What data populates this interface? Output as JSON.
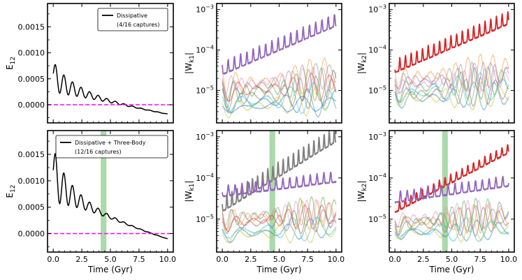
{
  "chart_data": [
    {
      "type": "line",
      "panel": "top-left",
      "ylabel": "E",
      "ylabel_sub": "12",
      "xlabel": "",
      "xlim": [
        -0.5,
        10.5
      ],
      "ylim": [
        -0.00035,
        0.00195
      ],
      "yscale": "linear",
      "yticks": [
        0.0,
        0.0005,
        0.001,
        0.0015
      ],
      "ytick_labels": [
        "0.0000",
        "0.0005",
        "0.0010",
        "0.0015"
      ],
      "xticks": [
        0.0,
        2.5,
        5.0,
        7.5,
        10.0
      ],
      "xtick_labels": [
        "0.0",
        "2.5",
        "5.0",
        "7.5",
        "10.0"
      ],
      "show_xtick_labels": false,
      "legend": {
        "line1": "Dissipative",
        "line2": "(4/16 captures)",
        "placement": "upper-right"
      },
      "reference_line": {
        "y": 0.0,
        "color": "#ff00ff",
        "style": "dashed"
      },
      "series": [
        {
          "name": "Dissipative",
          "color": "#000000",
          "trend_start": 0.0006,
          "trend_end": -0.00018,
          "amp_start": 0.00028,
          "amp_decay": 0.45,
          "period": 0.75,
          "t_start": 0.0,
          "t_end": 10.0
        }
      ]
    },
    {
      "type": "line",
      "panel": "bottom-left",
      "ylabel": "E",
      "ylabel_sub": "12",
      "xlabel": "Time (Gyr)",
      "xlim": [
        -0.5,
        10.5
      ],
      "ylim": [
        -0.00035,
        0.00195
      ],
      "yscale": "linear",
      "yticks": [
        0.0,
        0.0005,
        0.001,
        0.0015
      ],
      "ytick_labels": [
        "0.0000",
        "0.0005",
        "0.0010",
        "0.0015"
      ],
      "xticks": [
        0.0,
        2.5,
        5.0,
        7.5,
        10.0
      ],
      "xtick_labels": [
        "0.0",
        "2.5",
        "5.0",
        "7.5",
        "10.0"
      ],
      "show_xtick_labels": true,
      "legend": {
        "line1": "Dissipative + Three-Body",
        "line2": "(12/16 captures)",
        "placement": "upper-right"
      },
      "reference_line": {
        "y": 0.0,
        "color": "#ff00ff",
        "style": "dashed"
      },
      "shaded_band": {
        "x": [
          4.15,
          4.65
        ],
        "color": "#2ca02c"
      },
      "series": [
        {
          "name": "Dissipative + Three-Body",
          "color": "#000000",
          "trend_start": 0.0012,
          "trend_end": -0.0001,
          "amp_start": 0.0005,
          "amp_decay": 0.55,
          "period": 0.75,
          "t_start": 0.0,
          "t_end": 10.0
        }
      ]
    },
    {
      "type": "line",
      "panel": "top-middle",
      "ylabel": "|W",
      "ylabel_sub": "k1",
      "ylabel_end": "|",
      "xlabel": "",
      "xlim": [
        -0.5,
        10.5
      ],
      "ylim_log10": [
        -5.8,
        -2.85
      ],
      "yscale": "log",
      "ytick_exponents": [
        -5,
        -4,
        -3
      ],
      "ytick_base": "10",
      "xticks": [
        0.0,
        2.5,
        5.0,
        7.5,
        10.0
      ],
      "xtick_labels": [
        "0.0",
        "2.5",
        "5.0",
        "7.5",
        "10.0"
      ],
      "show_xtick_labels": false,
      "series": [
        {
          "name": "highlight",
          "color": "#9467bd",
          "log_start": -4.55,
          "log_end": -3.35,
          "amp": 0.22,
          "period": 0.55,
          "width": 1.8,
          "alpha": 1.0
        },
        {
          "name": "bg1",
          "color": "#1f77b4",
          "log_start": -5.25,
          "log_end": -5.3,
          "amp": 0.35,
          "period": 1.9,
          "width": 1.2,
          "alpha": 0.45
        },
        {
          "name": "bg2",
          "color": "#ff7f0e",
          "log_start": -4.9,
          "log_end": -4.6,
          "amp": 0.45,
          "period": 1.3,
          "width": 1.2,
          "alpha": 0.45
        },
        {
          "name": "bg3",
          "color": "#2ca02c",
          "log_start": -5.1,
          "log_end": -4.8,
          "amp": 0.4,
          "period": 1.1,
          "width": 1.2,
          "alpha": 0.45
        },
        {
          "name": "bg4",
          "color": "#d62728",
          "log_start": -5.0,
          "log_end": -4.9,
          "amp": 0.35,
          "period": 1.6,
          "width": 1.2,
          "alpha": 0.45
        },
        {
          "name": "bg5",
          "color": "#8c564b",
          "log_start": -5.2,
          "log_end": -5.0,
          "amp": 0.4,
          "period": 1.4,
          "width": 1.2,
          "alpha": 0.45
        },
        {
          "name": "bg6",
          "color": "#e377c2",
          "log_start": -4.85,
          "log_end": -4.7,
          "amp": 0.3,
          "period": 0.9,
          "width": 1.2,
          "alpha": 0.45
        },
        {
          "name": "bg7",
          "color": "#7f7f7f",
          "log_start": -5.0,
          "log_end": -4.6,
          "amp": 0.35,
          "period": 1.2,
          "width": 1.2,
          "alpha": 0.45
        },
        {
          "name": "bg8",
          "color": "#bcbd22",
          "log_start": -5.45,
          "log_end": -5.2,
          "amp": 0.35,
          "period": 1.7,
          "width": 1.2,
          "alpha": 0.45
        },
        {
          "name": "bg9",
          "color": "#17becf",
          "log_start": -5.3,
          "log_end": -5.15,
          "amp": 0.38,
          "period": 2.1,
          "width": 1.2,
          "alpha": 0.45
        },
        {
          "name": "bg10",
          "color": "#1f77b4",
          "log_start": -5.45,
          "log_end": -5.3,
          "amp": 0.2,
          "period": 2.5,
          "width": 1.2,
          "alpha": 0.45
        }
      ]
    },
    {
      "type": "line",
      "panel": "bottom-middle",
      "ylabel": "|W",
      "ylabel_sub": "k1",
      "ylabel_end": "|",
      "xlabel": "Time (Gyr)",
      "xlim": [
        -0.5,
        10.5
      ],
      "ylim_log10": [
        -5.8,
        -2.85
      ],
      "yscale": "log",
      "ytick_exponents": [
        -5,
        -4,
        -3
      ],
      "ytick_base": "10",
      "xticks": [
        0.0,
        2.5,
        5.0,
        7.5,
        10.0
      ],
      "xtick_labels": [
        "0.0",
        "2.5",
        "5.0",
        "7.5",
        "10.0"
      ],
      "show_xtick_labels": true,
      "shaded_band": {
        "x": [
          4.15,
          4.65
        ],
        "color": "#2ca02c"
      },
      "series": [
        {
          "name": "highlight-gray",
          "color": "#7f7f7f",
          "log_start": -4.75,
          "log_end": -3.05,
          "amp": 0.25,
          "period": 0.45,
          "width": 1.8,
          "alpha": 1.0
        },
        {
          "name": "highlight-purple",
          "color": "#9467bd",
          "log_start": -4.4,
          "log_end": -4.05,
          "amp": 0.18,
          "period": 0.6,
          "width": 1.8,
          "alpha": 1.0
        },
        {
          "name": "bg1",
          "color": "#1f77b4",
          "log_start": -5.4,
          "log_end": -5.2,
          "amp": 0.25,
          "period": 2.0,
          "width": 1.2,
          "alpha": 0.45
        },
        {
          "name": "bg2",
          "color": "#ff7f0e",
          "log_start": -5.0,
          "log_end": -4.85,
          "amp": 0.35,
          "period": 1.2,
          "width": 1.2,
          "alpha": 0.45
        },
        {
          "name": "bg3",
          "color": "#2ca02c",
          "log_start": -5.0,
          "log_end": -4.75,
          "amp": 0.35,
          "period": 1.0,
          "width": 1.2,
          "alpha": 0.45
        },
        {
          "name": "bg4",
          "color": "#d62728",
          "log_start": -5.1,
          "log_end": -4.9,
          "amp": 0.3,
          "period": 1.5,
          "width": 1.2,
          "alpha": 0.45
        },
        {
          "name": "bg5",
          "color": "#8c564b",
          "log_start": -5.15,
          "log_end": -5.0,
          "amp": 0.3,
          "period": 1.3,
          "width": 1.2,
          "alpha": 0.45
        },
        {
          "name": "bg6",
          "color": "#e377c2",
          "log_start": -4.95,
          "log_end": -4.8,
          "amp": 0.3,
          "period": 0.95,
          "width": 1.2,
          "alpha": 0.45
        },
        {
          "name": "bg7",
          "color": "#bcbd22",
          "log_start": -5.4,
          "log_end": -5.25,
          "amp": 0.3,
          "period": 1.8,
          "width": 1.2,
          "alpha": 0.45
        },
        {
          "name": "bg8",
          "color": "#17becf",
          "log_start": -5.3,
          "log_end": -5.2,
          "amp": 0.3,
          "period": 2.2,
          "width": 1.2,
          "alpha": 0.45
        }
      ]
    },
    {
      "type": "line",
      "panel": "top-right",
      "ylabel": "|W",
      "ylabel_sub": "k2",
      "ylabel_end": "|",
      "xlabel": "",
      "xlim": [
        -0.5,
        10.5
      ],
      "ylim_log10": [
        -5.8,
        -2.85
      ],
      "yscale": "log",
      "ytick_exponents": [
        -5,
        -4,
        -3
      ],
      "ytick_base": "10",
      "xticks": [
        0.0,
        2.5,
        5.0,
        7.5,
        10.0
      ],
      "xtick_labels": [
        "0.0",
        "2.5",
        "5.0",
        "7.5",
        "10.0"
      ],
      "show_xtick_labels": false,
      "series": [
        {
          "name": "highlight",
          "color": "#d62728",
          "log_start": -4.5,
          "log_end": -3.3,
          "amp": 0.22,
          "period": 0.5,
          "width": 1.8,
          "alpha": 1.0
        },
        {
          "name": "bg1",
          "color": "#1f77b4",
          "log_start": -5.2,
          "log_end": -5.1,
          "amp": 0.35,
          "period": 1.8,
          "width": 1.2,
          "alpha": 0.45
        },
        {
          "name": "bg2",
          "color": "#ff7f0e",
          "log_start": -4.7,
          "log_end": -4.45,
          "amp": 0.4,
          "period": 1.1,
          "width": 1.2,
          "alpha": 0.45
        },
        {
          "name": "bg3",
          "color": "#2ca02c",
          "log_start": -5.0,
          "log_end": -4.75,
          "amp": 0.4,
          "period": 1.2,
          "width": 1.2,
          "alpha": 0.45
        },
        {
          "name": "bg4",
          "color": "#9467bd",
          "log_start": -4.85,
          "log_end": -4.6,
          "amp": 0.35,
          "period": 1.45,
          "width": 1.2,
          "alpha": 0.45
        },
        {
          "name": "bg5",
          "color": "#8c564b",
          "log_start": -5.1,
          "log_end": -5.0,
          "amp": 0.35,
          "period": 1.3,
          "width": 1.2,
          "alpha": 0.45
        },
        {
          "name": "bg6",
          "color": "#e377c2",
          "log_start": -4.9,
          "log_end": -4.7,
          "amp": 0.3,
          "period": 0.9,
          "width": 1.2,
          "alpha": 0.45
        },
        {
          "name": "bg7",
          "color": "#7f7f7f",
          "log_start": -4.75,
          "log_end": -4.6,
          "amp": 0.35,
          "period": 1.0,
          "width": 1.2,
          "alpha": 0.45
        },
        {
          "name": "bg8",
          "color": "#bcbd22",
          "log_start": -5.2,
          "log_end": -5.1,
          "amp": 0.35,
          "period": 1.6,
          "width": 1.2,
          "alpha": 0.45
        },
        {
          "name": "bg9",
          "color": "#17becf",
          "log_start": -5.1,
          "log_end": -4.9,
          "amp": 0.4,
          "period": 2.0,
          "width": 1.2,
          "alpha": 0.45
        }
      ]
    },
    {
      "type": "line",
      "panel": "bottom-right",
      "ylabel": "|W",
      "ylabel_sub": "k2",
      "ylabel_end": "|",
      "xlabel": "Time (Gyr)",
      "xlim": [
        -0.5,
        10.5
      ],
      "ylim_log10": [
        -5.8,
        -2.85
      ],
      "yscale": "log",
      "ytick_exponents": [
        -5,
        -4,
        -3
      ],
      "ytick_base": "10",
      "xticks": [
        0.0,
        2.5,
        5.0,
        7.5,
        10.0
      ],
      "xtick_labels": [
        "0.0",
        "2.5",
        "5.0",
        "7.5",
        "10.0"
      ],
      "show_xtick_labels": true,
      "shaded_band": {
        "x": [
          4.15,
          4.65
        ],
        "color": "#2ca02c"
      },
      "series": [
        {
          "name": "highlight-red",
          "color": "#d62728",
          "log_start": -4.8,
          "log_end": -3.35,
          "amp": 0.15,
          "period": 0.5,
          "width": 1.8,
          "alpha": 1.0
        },
        {
          "name": "highlight-purple",
          "color": "#9467bd",
          "log_start": -4.55,
          "log_end": -4.15,
          "amp": 0.18,
          "period": 0.6,
          "width": 1.8,
          "alpha": 1.0
        },
        {
          "name": "bg1",
          "color": "#1f77b4",
          "log_start": -5.35,
          "log_end": -5.25,
          "amp": 0.25,
          "period": 1.9,
          "width": 1.2,
          "alpha": 0.45
        },
        {
          "name": "bg2",
          "color": "#ff7f0e",
          "log_start": -5.1,
          "log_end": -4.95,
          "amp": 0.35,
          "period": 1.2,
          "width": 1.2,
          "alpha": 0.45
        },
        {
          "name": "bg3",
          "color": "#2ca02c",
          "log_start": -5.15,
          "log_end": -4.8,
          "amp": 0.4,
          "period": 1.05,
          "width": 1.2,
          "alpha": 0.45
        },
        {
          "name": "bg4",
          "color": "#8c564b",
          "log_start": -5.2,
          "log_end": -5.0,
          "amp": 0.35,
          "period": 1.35,
          "width": 1.2,
          "alpha": 0.45
        },
        {
          "name": "bg5",
          "color": "#e377c2",
          "log_start": -5.0,
          "log_end": -4.85,
          "amp": 0.35,
          "period": 0.95,
          "width": 1.2,
          "alpha": 0.45
        },
        {
          "name": "bg6",
          "color": "#7f7f7f",
          "log_start": -5.05,
          "log_end": -4.95,
          "amp": 0.3,
          "period": 1.5,
          "width": 1.2,
          "alpha": 0.45
        },
        {
          "name": "bg7",
          "color": "#bcbd22",
          "log_start": -5.35,
          "log_end": -5.2,
          "amp": 0.3,
          "period": 1.8,
          "width": 1.2,
          "alpha": 0.45
        },
        {
          "name": "bg8",
          "color": "#17becf",
          "log_start": -5.3,
          "log_end": -5.25,
          "amp": 0.3,
          "period": 2.3,
          "width": 1.2,
          "alpha": 0.45
        }
      ]
    }
  ]
}
